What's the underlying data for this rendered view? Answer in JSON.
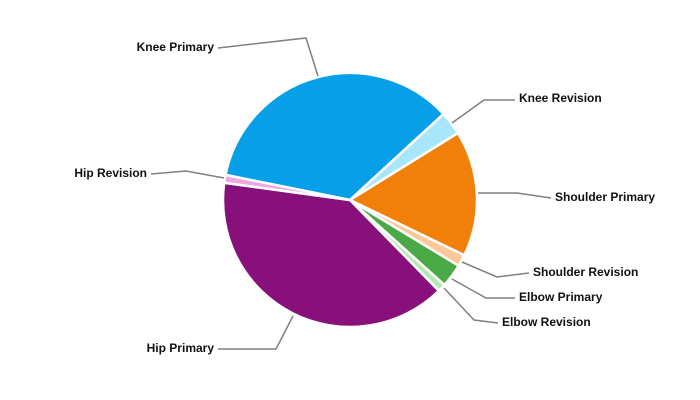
{
  "chart_data": {
    "type": "pie",
    "categories": [
      "Knee Primary",
      "Knee Revision",
      "Shoulder Primary",
      "Shoulder Revision",
      "Elbow Primary",
      "Elbow Revision",
      "Hip Primary",
      "Hip Revision"
    ],
    "values": [
      35,
      3,
      16,
      1.5,
      3,
      1,
      39.5,
      1
    ],
    "colors": [
      "#069fe8",
      "#a8e6fb",
      "#f0800a",
      "#fbc89a",
      "#4aa846",
      "#b5e8b0",
      "#88107a",
      "#f0a8e0"
    ]
  }
}
